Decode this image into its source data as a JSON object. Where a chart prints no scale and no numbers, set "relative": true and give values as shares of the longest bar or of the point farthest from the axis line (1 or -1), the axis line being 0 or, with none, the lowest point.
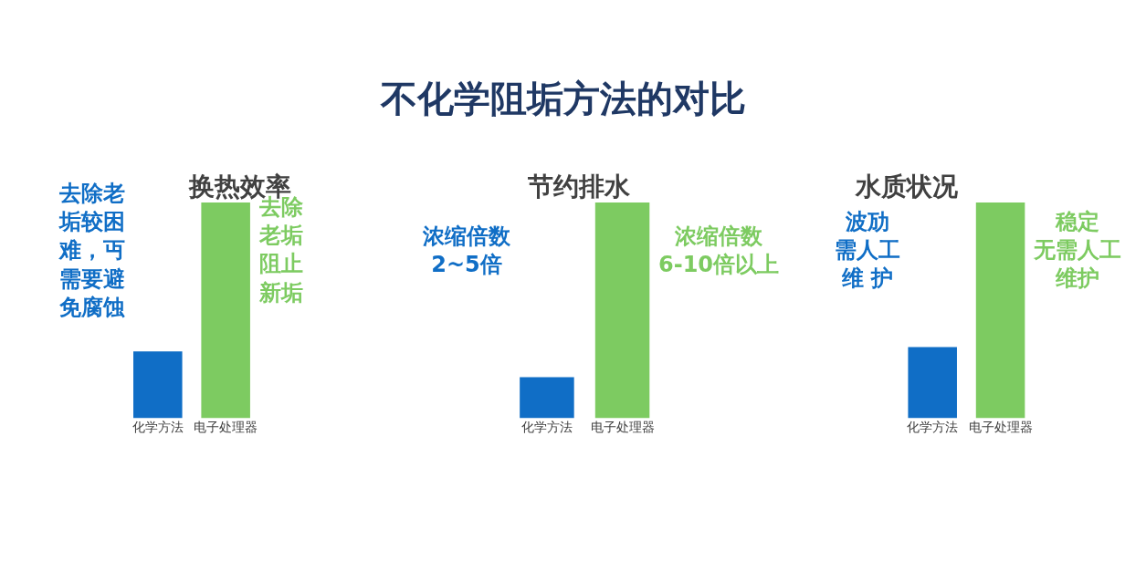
{
  "chart_data": [
    {
      "type": "other",
      "title": "不化学阻垢方法的对比"
    },
    {
      "type": "bar",
      "title": "换热效率",
      "categories": [
        "化学方法",
        "电子处理器"
      ],
      "values": [
        0.31,
        1
      ],
      "colors": [
        "#106ec6",
        "#7dcb61"
      ],
      "relative": true,
      "tick_labels": "x",
      "annotations": [
        "去除老垢较困难，丏需要避免腐蚀",
        "去除老垢阻止新垢"
      ]
    },
    {
      "type": "bar",
      "title": "节约排水",
      "categories": [
        "化学方法",
        "电子处理器"
      ],
      "values": [
        0.19,
        1
      ],
      "colors": [
        "#106ec6",
        "#7dcb61"
      ],
      "relative": true,
      "tick_labels": "x",
      "annotations": [
        "浓缩倍数2~5倍",
        "浓缩倍数6-10倍以上"
      ]
    },
    {
      "type": "bar",
      "title": "水质状况",
      "categories": [
        "化学方法",
        "电子处理器"
      ],
      "values": [
        0.33,
        1
      ],
      "colors": [
        "#106ec6",
        "#7dcb61"
      ],
      "relative": true,
      "tick_labels": "x",
      "annotations": [
        "波劢需人工维 护",
        "稳定无需人工维护"
      ]
    }
  ]
}
